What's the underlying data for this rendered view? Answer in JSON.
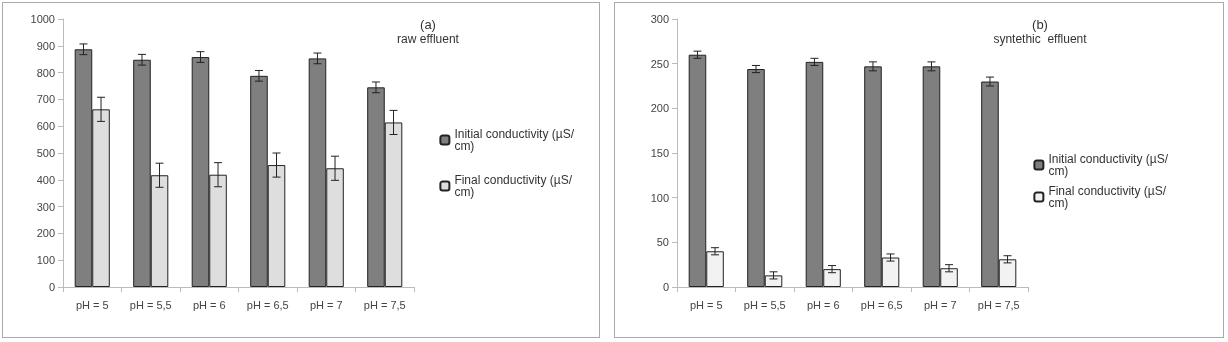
{
  "chart_data": [
    {
      "type": "bar",
      "title": "(a)",
      "subtitle": "raw effluent",
      "categories": [
        "pH = 5",
        "pH = 5,5",
        "pH = 6",
        "pH = 6,5",
        "pH = 7",
        "pH = 7,5"
      ],
      "series": [
        {
          "name": "Initial conductivity (µS/cm)",
          "color": "#7f7f7f",
          "values": [
            887,
            848,
            858,
            788,
            853,
            745
          ],
          "errors": [
            20,
            20,
            20,
            20,
            20,
            20
          ]
        },
        {
          "name": "Final conductivity (µS/cm)",
          "color": "#dedede",
          "values": [
            663,
            417,
            419,
            455,
            443,
            614
          ],
          "errors": [
            45,
            45,
            45,
            45,
            45,
            45
          ]
        }
      ],
      "ylim": [
        0,
        1000
      ],
      "yticks": [
        0,
        100,
        200,
        300,
        400,
        500,
        600,
        700,
        800,
        900,
        1000
      ],
      "grid": false,
      "legend": "right"
    },
    {
      "type": "bar",
      "title": "(b)",
      "subtitle": "syntethic  effluent",
      "categories": [
        "pH = 5",
        "pH = 5,5",
        "pH = 6",
        "pH = 6,5",
        "pH = 7",
        "pH = 7,5"
      ],
      "series": [
        {
          "name": "Initial conductivity (µS/cm)",
          "color": "#7f7f7f",
          "values": [
            260,
            244,
            252,
            247,
            247,
            230
          ],
          "errors": [
            4,
            4,
            4,
            5,
            5,
            5
          ]
        },
        {
          "name": "Final conductivity (µS/cm)",
          "color": "#f2f2f2",
          "values": [
            40,
            13,
            20,
            33,
            21,
            31
          ],
          "errors": [
            4,
            4,
            4,
            4,
            4,
            4
          ]
        }
      ],
      "ylim": [
        0,
        300
      ],
      "yticks": [
        0,
        50,
        100,
        150,
        200,
        250,
        300
      ],
      "grid": false,
      "legend": "right"
    }
  ]
}
